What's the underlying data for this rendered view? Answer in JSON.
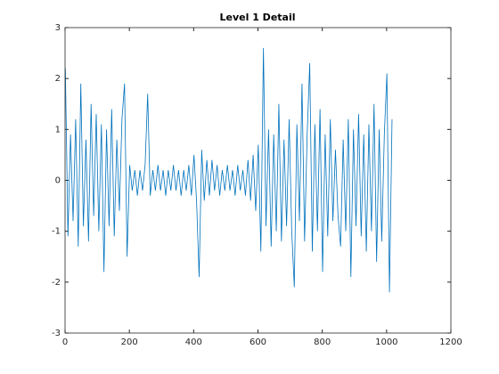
{
  "chart_data": {
    "type": "line",
    "title": "Level 1 Detail",
    "x": [
      1,
      9,
      17,
      25,
      33,
      41,
      49,
      57,
      65,
      73,
      81,
      89,
      97,
      105,
      113,
      121,
      129,
      137,
      145,
      153,
      161,
      169,
      177,
      185,
      193,
      201,
      209,
      217,
      225,
      233,
      241,
      249,
      257,
      265,
      273,
      281,
      289,
      297,
      305,
      313,
      321,
      329,
      337,
      345,
      353,
      361,
      369,
      377,
      385,
      393,
      401,
      409,
      417,
      425,
      433,
      441,
      449,
      457,
      465,
      473,
      481,
      489,
      497,
      505,
      513,
      521,
      529,
      537,
      545,
      553,
      561,
      569,
      577,
      585,
      593,
      601,
      609,
      617,
      625,
      633,
      641,
      649,
      657,
      665,
      673,
      681,
      689,
      697,
      705,
      713,
      721,
      729,
      737,
      745,
      753,
      761,
      769,
      777,
      785,
      793,
      801,
      809,
      817,
      825,
      833,
      841,
      849,
      857,
      865,
      873,
      881,
      889,
      897,
      905,
      913,
      921,
      929,
      937,
      945,
      953,
      961,
      969,
      977,
      985,
      993,
      1001,
      1009,
      1017
    ],
    "series": [
      {
        "color": "#0072bd",
        "values": [
          2.2,
          -1.1,
          0.9,
          -0.8,
          1.2,
          -1.3,
          1.9,
          -0.9,
          0.8,
          -1.2,
          1.5,
          -0.7,
          1.3,
          -1.0,
          1.1,
          -1.8,
          1.0,
          -0.9,
          1.4,
          -1.1,
          0.8,
          -0.6,
          1.2,
          1.9,
          -1.5,
          0.3,
          -0.2,
          0.2,
          -0.3,
          0.2,
          -0.2,
          0.3,
          1.7,
          -0.3,
          0.2,
          -0.2,
          0.3,
          -0.2,
          0.2,
          -0.3,
          0.2,
          -0.2,
          0.3,
          -0.2,
          0.2,
          -0.3,
          0.2,
          -0.2,
          0.3,
          -0.3,
          0.5,
          -0.4,
          -1.9,
          0.6,
          -0.4,
          0.4,
          -0.3,
          0.4,
          -0.2,
          0.3,
          -0.3,
          0.2,
          -0.2,
          0.3,
          -0.2,
          0.2,
          -0.3,
          0.3,
          -0.2,
          0.2,
          -0.3,
          0.4,
          -0.4,
          0.5,
          -0.6,
          0.7,
          -1.4,
          2.6,
          -0.9,
          1.0,
          -1.3,
          0.9,
          -1.0,
          1.5,
          -1.2,
          0.8,
          -0.9,
          1.2,
          -1.0,
          -2.1,
          1.1,
          -0.8,
          1.9,
          -1.2,
          0.9,
          2.3,
          -1.4,
          1.1,
          -1.0,
          1.4,
          -1.8,
          0.9,
          -1.1,
          1.2,
          -0.8,
          0.6,
          -0.7,
          -1.3,
          0.8,
          -1.0,
          1.2,
          -1.9,
          1.0,
          -0.9,
          1.3,
          -1.1,
          0.9,
          -1.4,
          1.1,
          -1.0,
          1.5,
          -1.6,
          1.0,
          -1.2,
          0.9,
          2.1,
          -2.2,
          1.2
        ]
      }
    ],
    "xlim": [
      0,
      1200
    ],
    "xticks": [
      0,
      200,
      400,
      600,
      800,
      1000,
      1200
    ],
    "ylim": [
      -3,
      3
    ],
    "yticks": [
      -3,
      -2,
      -1,
      0,
      1,
      2,
      3
    ],
    "grid": false
  }
}
